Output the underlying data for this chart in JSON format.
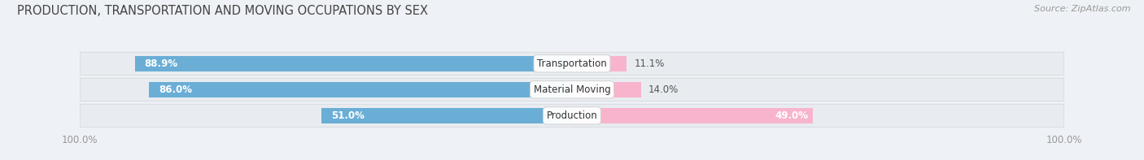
{
  "title": "PRODUCTION, TRANSPORTATION AND MOVING OCCUPATIONS BY SEX",
  "source": "Source: ZipAtlas.com",
  "categories": [
    "Transportation",
    "Material Moving",
    "Production"
  ],
  "male_pct": [
    88.9,
    86.0,
    51.0
  ],
  "female_pct": [
    11.1,
    14.0,
    49.0
  ],
  "male_color_dark": "#6aaed6",
  "male_color_light": "#b8d4e8",
  "female_color_dark": "#f06fa0",
  "female_color_light": "#f8b4cc",
  "row_bg_color": "#e8ecf0",
  "label_color": "#555555",
  "title_color": "#444444",
  "axis_label_color": "#999999",
  "background_color": "#eef1f5",
  "bar_height": 0.58,
  "legend_male_color": "#6aaed6",
  "legend_female_color": "#f06fa0"
}
